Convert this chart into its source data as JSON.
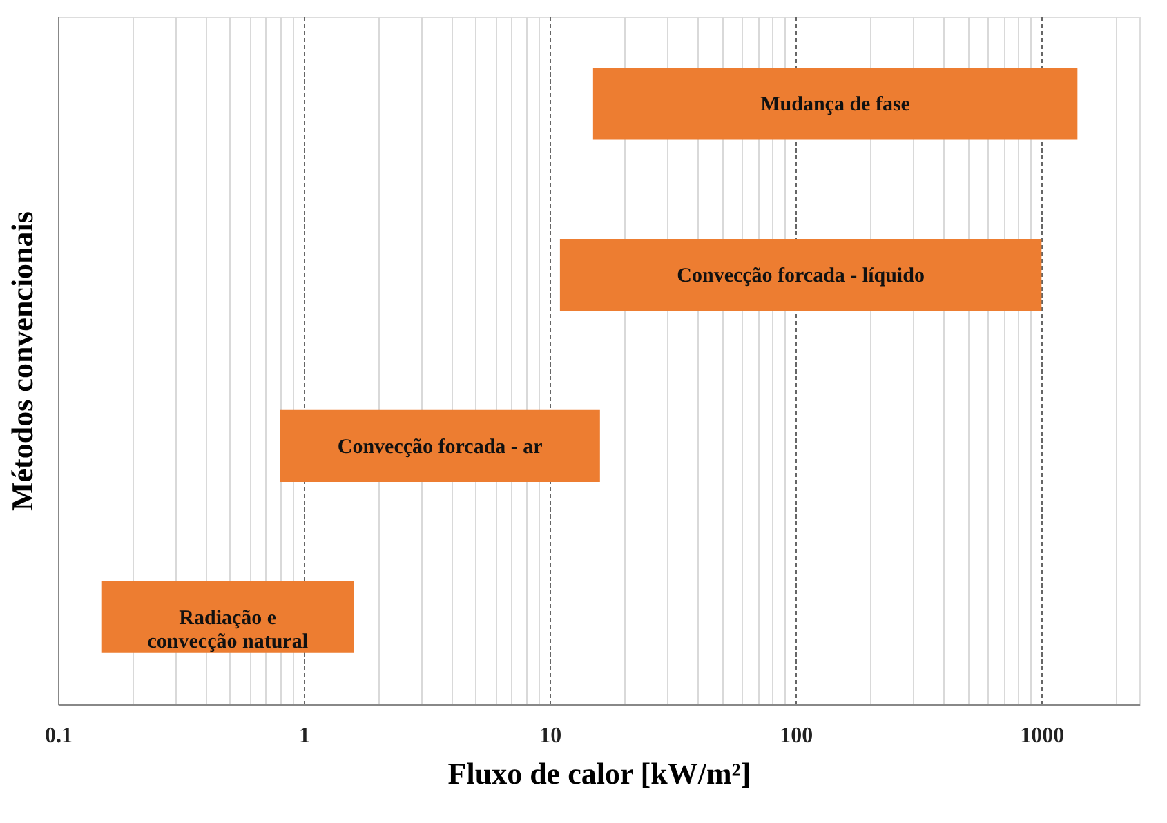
{
  "chart_data": {
    "type": "bar",
    "orientation": "horizontal",
    "log": "x",
    "categories": [
      "Mudança de fase",
      "Convecção forcada - líquido",
      "Convecção forcada - ar",
      "Radiação e\nconvecção natural"
    ],
    "base": [
      15,
      11,
      0.8,
      0.15
    ],
    "values": [
      1385,
      989,
      15.2,
      1.45
    ],
    "color": "#ed7d31",
    "xlabel": "Fluxo de calor [kW/m²]",
    "ylabel": "Métodos convencionais",
    "xlim": [
      0.1,
      2500
    ],
    "xticks": [
      0.1,
      {
        "value": 0.2,
        "label": null
      },
      {
        "value": 0.3,
        "label": null
      },
      {
        "value": 0.4,
        "label": null
      },
      {
        "value": 0.5,
        "label": null
      },
      {
        "value": 0.6,
        "label": null
      },
      {
        "value": 0.7,
        "label": null
      },
      {
        "value": 0.8,
        "label": null
      },
      {
        "value": 0.9,
        "label": null
      },
      1,
      {
        "value": 2,
        "label": null
      },
      {
        "value": 3,
        "label": null
      },
      {
        "value": 4,
        "label": null
      },
      {
        "value": 5,
        "label": null
      },
      {
        "value": 6,
        "label": null
      },
      {
        "value": 7,
        "label": null
      },
      {
        "value": 8,
        "label": null
      },
      {
        "value": 9,
        "label": null
      },
      10,
      {
        "value": 20,
        "label": null
      },
      {
        "value": 30,
        "label": null
      },
      {
        "value": 40,
        "label": null
      },
      {
        "value": 50,
        "label": null
      },
      {
        "value": 60,
        "label": null
      },
      {
        "value": 70,
        "label": null
      },
      {
        "value": 80,
        "label": null
      },
      {
        "value": 90,
        "label": null
      },
      100,
      {
        "value": 200,
        "label": null
      },
      {
        "value": 300,
        "label": null
      },
      {
        "value": 400,
        "label": null
      },
      {
        "value": 500,
        "label": null
      },
      {
        "value": 600,
        "label": null
      },
      {
        "value": 700,
        "label": null
      },
      {
        "value": 800,
        "label": null
      },
      {
        "value": 900,
        "label": null
      },
      1000,
      {
        "value": 2000,
        "label": null
      }
    ],
    "grid": "x",
    "tick_labels": "x"
  }
}
